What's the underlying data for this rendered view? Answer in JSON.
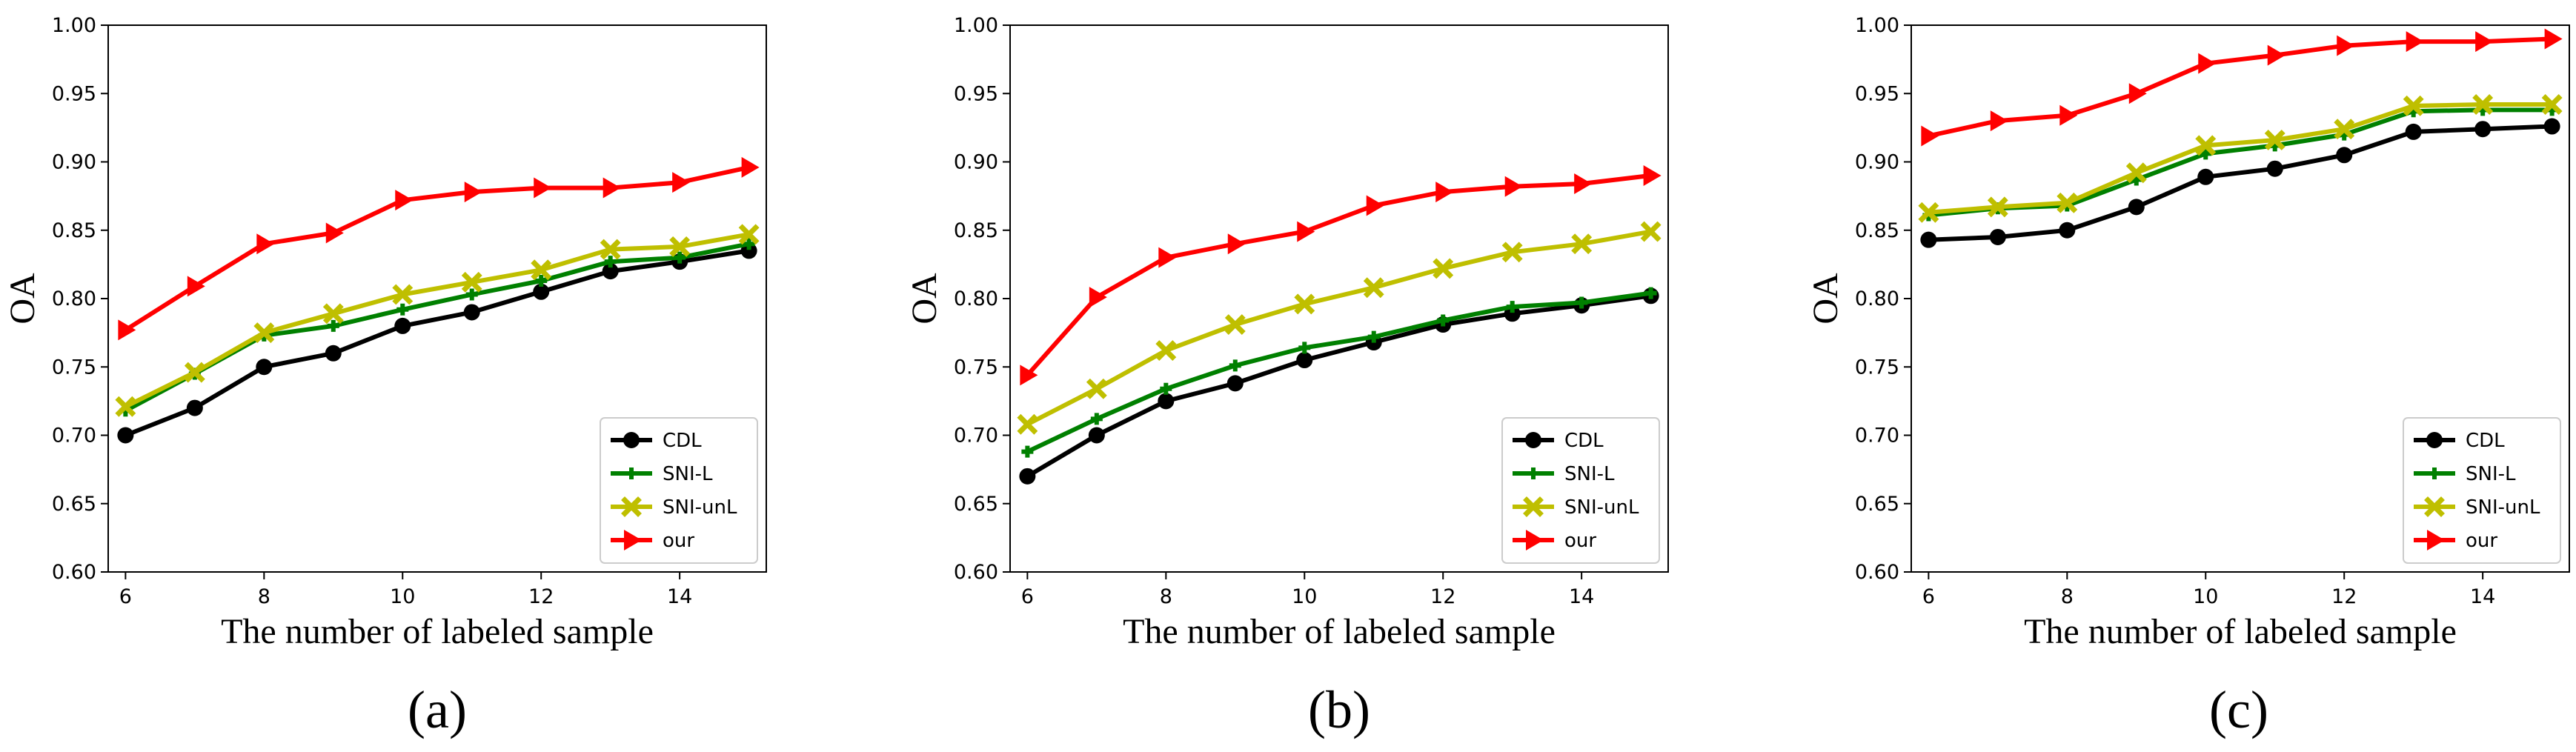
{
  "chart_data": [
    {
      "type": "line",
      "panel_label": "(a)",
      "xlabel": "The number of labeled sample",
      "ylabel": "OA",
      "xlim": [
        5.75,
        15.25
      ],
      "ylim": [
        0.6,
        1.0
      ],
      "xticks": [
        6,
        8,
        10,
        12,
        14
      ],
      "yticks": [
        "0.60",
        "0.65",
        "0.70",
        "0.75",
        "0.80",
        "0.85",
        "0.90",
        "0.95",
        "1.00"
      ],
      "legend_position": "lower-right",
      "x": [
        6,
        7,
        8,
        9,
        10,
        11,
        12,
        13,
        14,
        15
      ],
      "series": [
        {
          "name": "CDL",
          "color": "#000000",
          "marker": "circle",
          "values": [
            0.7,
            0.72,
            0.75,
            0.76,
            0.78,
            0.79,
            0.805,
            0.82,
            0.827,
            0.835
          ]
        },
        {
          "name": "SNI-L",
          "color": "#008000",
          "marker": "plus",
          "values": [
            0.718,
            0.745,
            0.773,
            0.78,
            0.792,
            0.803,
            0.813,
            0.827,
            0.83,
            0.84
          ]
        },
        {
          "name": "SNI-unL",
          "color": "#bfbf00",
          "marker": "x",
          "values": [
            0.721,
            0.746,
            0.775,
            0.789,
            0.803,
            0.812,
            0.821,
            0.836,
            0.838,
            0.847
          ]
        },
        {
          "name": "our",
          "color": "#ff0000",
          "marker": "triangle-right",
          "values": [
            0.777,
            0.809,
            0.84,
            0.848,
            0.872,
            0.878,
            0.881,
            0.881,
            0.885,
            0.896
          ]
        }
      ]
    },
    {
      "type": "line",
      "panel_label": "(b)",
      "xlabel": "The number of labeled sample",
      "ylabel": "OA",
      "xlim": [
        5.75,
        15.25
      ],
      "ylim": [
        0.6,
        1.0
      ],
      "xticks": [
        6,
        8,
        10,
        12,
        14
      ],
      "yticks": [
        "0.60",
        "0.65",
        "0.70",
        "0.75",
        "0.80",
        "0.85",
        "0.90",
        "0.95",
        "1.00"
      ],
      "legend_position": "lower-right",
      "x": [
        6,
        7,
        8,
        9,
        10,
        11,
        12,
        13,
        14,
        15
      ],
      "series": [
        {
          "name": "CDL",
          "color": "#000000",
          "marker": "circle",
          "values": [
            0.67,
            0.7,
            0.725,
            0.738,
            0.755,
            0.768,
            0.781,
            0.789,
            0.795,
            0.802
          ]
        },
        {
          "name": "SNI-L",
          "color": "#008000",
          "marker": "plus",
          "values": [
            0.688,
            0.712,
            0.734,
            0.751,
            0.764,
            0.772,
            0.784,
            0.794,
            0.797,
            0.804
          ]
        },
        {
          "name": "SNI-unL",
          "color": "#bfbf00",
          "marker": "x",
          "values": [
            0.708,
            0.734,
            0.762,
            0.781,
            0.796,
            0.808,
            0.822,
            0.834,
            0.84,
            0.849
          ]
        },
        {
          "name": "our",
          "color": "#ff0000",
          "marker": "triangle-right",
          "values": [
            0.744,
            0.801,
            0.83,
            0.84,
            0.849,
            0.868,
            0.878,
            0.882,
            0.884,
            0.89
          ]
        }
      ]
    },
    {
      "type": "line",
      "panel_label": "(c)",
      "xlabel": "The number of labeled sample",
      "ylabel": "OA",
      "xlim": [
        5.75,
        15.25
      ],
      "ylim": [
        0.6,
        1.0
      ],
      "xticks": [
        6,
        8,
        10,
        12,
        14
      ],
      "yticks": [
        "0.60",
        "0.65",
        "0.70",
        "0.75",
        "0.80",
        "0.85",
        "0.90",
        "0.95",
        "1.00"
      ],
      "legend_position": "lower-right",
      "x": [
        6,
        7,
        8,
        9,
        10,
        11,
        12,
        13,
        14,
        15
      ],
      "series": [
        {
          "name": "CDL",
          "color": "#000000",
          "marker": "circle",
          "values": [
            0.843,
            0.845,
            0.85,
            0.867,
            0.889,
            0.895,
            0.905,
            0.922,
            0.924,
            0.926
          ]
        },
        {
          "name": "SNI-L",
          "color": "#008000",
          "marker": "plus",
          "values": [
            0.861,
            0.866,
            0.868,
            0.887,
            0.906,
            0.912,
            0.92,
            0.937,
            0.938,
            0.938
          ]
        },
        {
          "name": "SNI-unL",
          "color": "#bfbf00",
          "marker": "x",
          "values": [
            0.863,
            0.867,
            0.87,
            0.892,
            0.912,
            0.916,
            0.924,
            0.941,
            0.942,
            0.942
          ]
        },
        {
          "name": "our",
          "color": "#ff0000",
          "marker": "triangle-right",
          "values": [
            0.919,
            0.93,
            0.934,
            0.95,
            0.972,
            0.978,
            0.985,
            0.988,
            0.988,
            0.99
          ]
        }
      ]
    }
  ]
}
